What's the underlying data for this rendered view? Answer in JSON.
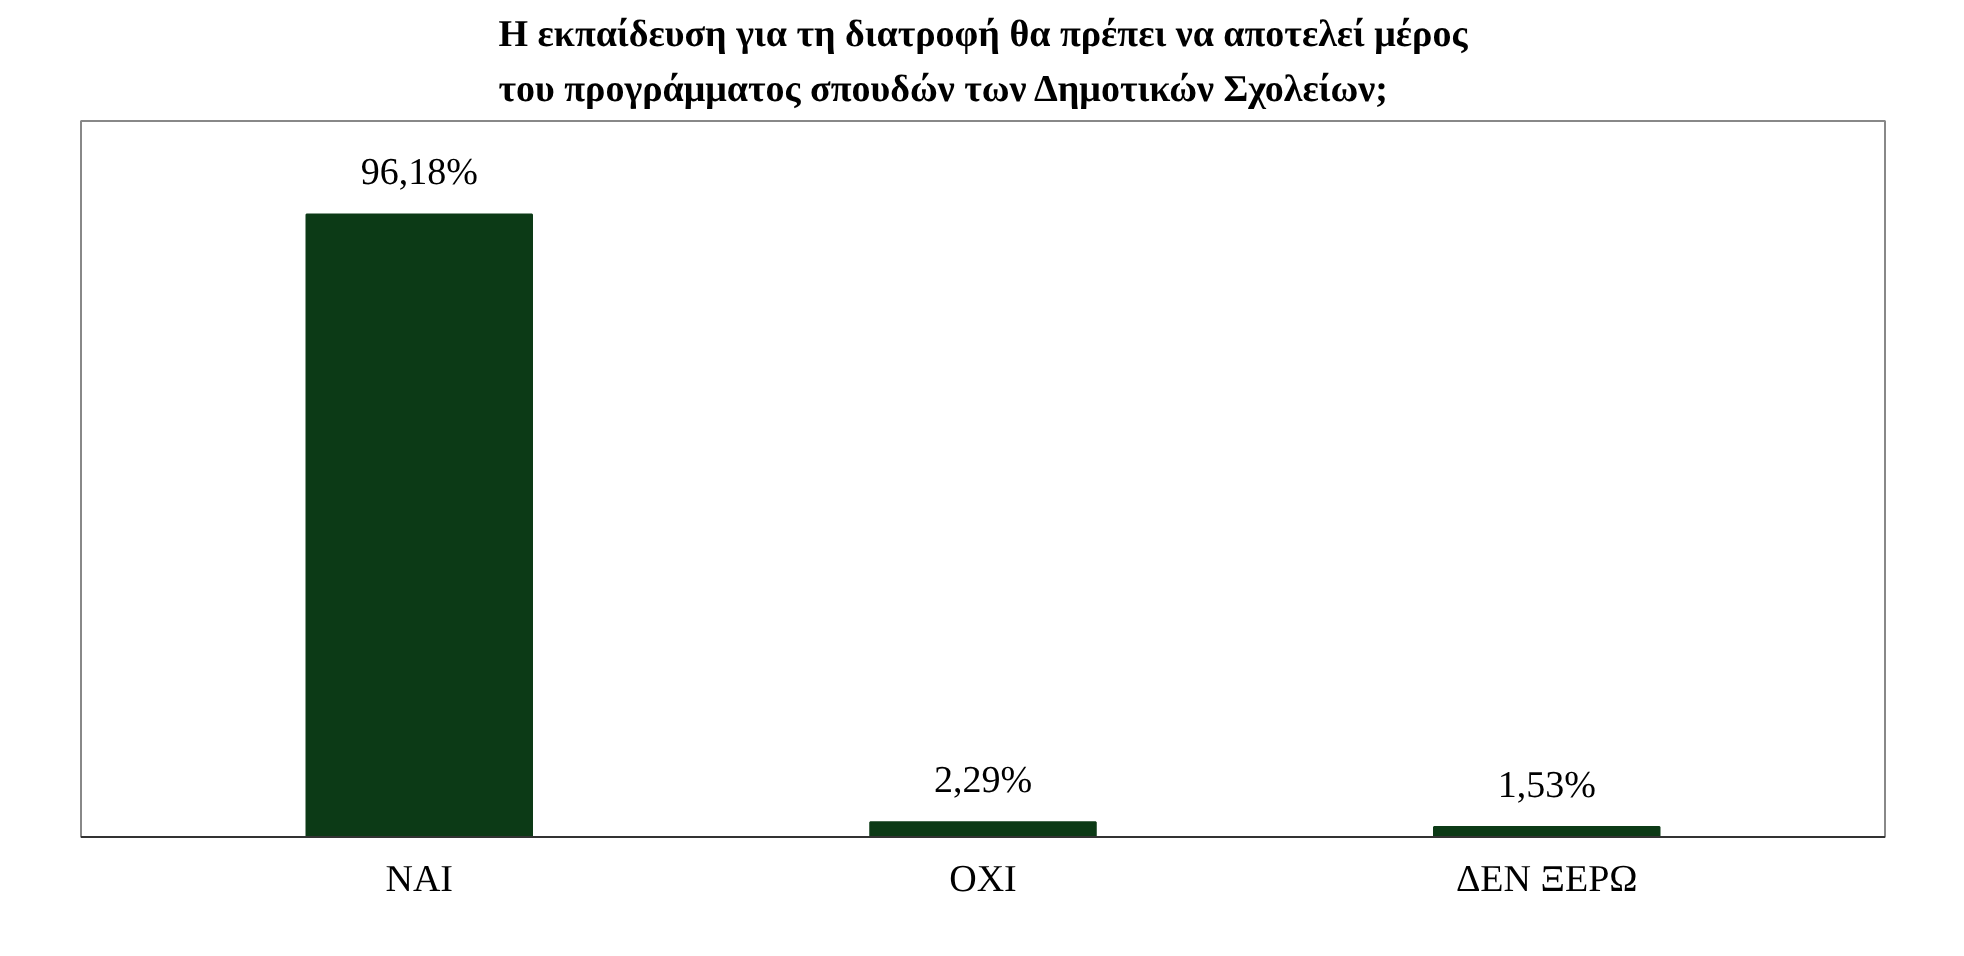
{
  "chart_data": {
    "type": "bar",
    "title": "Η εκπαίδευση για τη διατροφή θα πρέπει να αποτελεί μέρος\nτου προγράμματος σπουδών των Δημοτικών Σχολείων;",
    "categories": [
      "ΝΑΙ",
      "ΟΧΙ",
      "ΔΕΝ ΞΕΡΩ"
    ],
    "values": [
      96.18,
      2.29,
      1.53
    ],
    "value_labels": [
      "96,18%",
      "2,29%",
      "1,53%"
    ],
    "color": "#0c3a16",
    "grid": false
  }
}
